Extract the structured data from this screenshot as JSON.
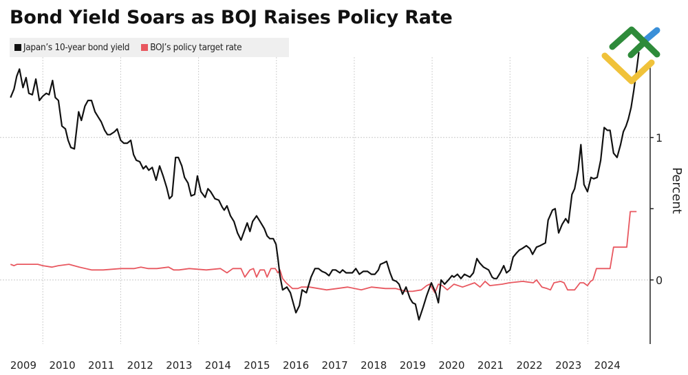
{
  "title": "Bond Yield Soars as BOJ Raises Policy Rate",
  "legend": [
    {
      "label": "Japan’s 10-year bond yield",
      "color": "#111111"
    },
    {
      "label": "BOJ’s policy target rate",
      "color": "#e8575f"
    }
  ],
  "logo": {
    "name": "brand-logo",
    "colors": {
      "green": "#2e8b3a",
      "blue": "#3a8fd8",
      "yellow": "#f0c23a"
    }
  },
  "chart_data": {
    "type": "line",
    "title": "Bond Yield Soars as BOJ Raises Policy Rate",
    "xlabel": "",
    "ylabel": "Percent",
    "xlim": [
      2008.9,
      2025.6
    ],
    "ylim": [
      -0.45,
      1.54
    ],
    "grid": true,
    "legend_position": "top-left",
    "x_ticks": [
      2009,
      2010,
      2011,
      2012,
      2013,
      2014,
      2015,
      2016,
      2017,
      2018,
      2019,
      2020,
      2021,
      2022,
      2023,
      2024
    ],
    "x_tick_labels": [
      "2009",
      "2010",
      "2011",
      "2012",
      "2013",
      "2014",
      "2015",
      "2016",
      "2017",
      "2018",
      "2019",
      "2020",
      "2021",
      "2022",
      "2023",
      "2024"
    ],
    "x_gridlines": [
      2010,
      2012,
      2014,
      2016,
      2018,
      2020,
      2022,
      2024
    ],
    "y_ticks": [
      0,
      0.5,
      1
    ],
    "y_tick_labels": [
      "0",
      "",
      "1"
    ],
    "y_gridlines": [
      0,
      1
    ],
    "series": [
      {
        "name": "Japan’s 10-year bond yield",
        "color": "#111111",
        "points": [
          [
            2009.17,
            1.28
          ],
          [
            2009.26,
            1.34
          ],
          [
            2009.33,
            1.43
          ],
          [
            2009.4,
            1.48
          ],
          [
            2009.49,
            1.35
          ],
          [
            2009.57,
            1.42
          ],
          [
            2009.64,
            1.31
          ],
          [
            2009.73,
            1.3
          ],
          [
            2009.82,
            1.41
          ],
          [
            2009.91,
            1.26
          ],
          [
            2010.0,
            1.29
          ],
          [
            2010.09,
            1.31
          ],
          [
            2010.16,
            1.3
          ],
          [
            2010.25,
            1.4
          ],
          [
            2010.32,
            1.28
          ],
          [
            2010.4,
            1.26
          ],
          [
            2010.49,
            1.08
          ],
          [
            2010.58,
            1.06
          ],
          [
            2010.65,
            0.98
          ],
          [
            2010.72,
            0.93
          ],
          [
            2010.81,
            0.92
          ],
          [
            2010.92,
            1.18
          ],
          [
            2010.99,
            1.12
          ],
          [
            2011.08,
            1.22
          ],
          [
            2011.16,
            1.26
          ],
          [
            2011.25,
            1.26
          ],
          [
            2011.34,
            1.18
          ],
          [
            2011.43,
            1.14
          ],
          [
            2011.5,
            1.11
          ],
          [
            2011.59,
            1.05
          ],
          [
            2011.66,
            1.02
          ],
          [
            2011.73,
            1.02
          ],
          [
            2011.84,
            1.04
          ],
          [
            2011.91,
            1.06
          ],
          [
            2012.0,
            0.98
          ],
          [
            2012.08,
            0.96
          ],
          [
            2012.17,
            0.96
          ],
          [
            2012.26,
            0.98
          ],
          [
            2012.33,
            0.88
          ],
          [
            2012.4,
            0.84
          ],
          [
            2012.49,
            0.83
          ],
          [
            2012.58,
            0.78
          ],
          [
            2012.65,
            0.8
          ],
          [
            2012.72,
            0.77
          ],
          [
            2012.81,
            0.79
          ],
          [
            2012.91,
            0.7
          ],
          [
            2013.0,
            0.8
          ],
          [
            2013.09,
            0.73
          ],
          [
            2013.18,
            0.65
          ],
          [
            2013.25,
            0.57
          ],
          [
            2013.32,
            0.59
          ],
          [
            2013.41,
            0.86
          ],
          [
            2013.48,
            0.86
          ],
          [
            2013.57,
            0.8
          ],
          [
            2013.64,
            0.72
          ],
          [
            2013.73,
            0.68
          ],
          [
            2013.81,
            0.59
          ],
          [
            2013.9,
            0.6
          ],
          [
            2013.97,
            0.73
          ],
          [
            2014.06,
            0.62
          ],
          [
            2014.17,
            0.58
          ],
          [
            2014.24,
            0.64
          ],
          [
            2014.31,
            0.62
          ],
          [
            2014.42,
            0.57
          ],
          [
            2014.52,
            0.56
          ],
          [
            2014.61,
            0.51
          ],
          [
            2014.66,
            0.49
          ],
          [
            2014.73,
            0.52
          ],
          [
            2014.82,
            0.45
          ],
          [
            2014.91,
            0.41
          ],
          [
            2015.0,
            0.33
          ],
          [
            2015.09,
            0.28
          ],
          [
            2015.17,
            0.34
          ],
          [
            2015.25,
            0.4
          ],
          [
            2015.32,
            0.34
          ],
          [
            2015.39,
            0.41
          ],
          [
            2015.49,
            0.45
          ],
          [
            2015.58,
            0.41
          ],
          [
            2015.69,
            0.36
          ],
          [
            2015.76,
            0.31
          ],
          [
            2015.83,
            0.29
          ],
          [
            2015.92,
            0.29
          ],
          [
            2015.99,
            0.25
          ],
          [
            2016.04,
            0.15
          ],
          [
            2016.09,
            0.03
          ],
          [
            2016.16,
            -0.07
          ],
          [
            2016.27,
            -0.05
          ],
          [
            2016.36,
            -0.09
          ],
          [
            2016.43,
            -0.16
          ],
          [
            2016.5,
            -0.23
          ],
          [
            2016.59,
            -0.18
          ],
          [
            2016.66,
            -0.07
          ],
          [
            2016.77,
            -0.09
          ],
          [
            2016.89,
            0.02
          ],
          [
            2016.99,
            0.08
          ],
          [
            2017.08,
            0.08
          ],
          [
            2017.17,
            0.06
          ],
          [
            2017.26,
            0.05
          ],
          [
            2017.35,
            0.03
          ],
          [
            2017.44,
            0.07
          ],
          [
            2017.52,
            0.07
          ],
          [
            2017.63,
            0.05
          ],
          [
            2017.7,
            0.07
          ],
          [
            2017.79,
            0.05
          ],
          [
            2017.95,
            0.05
          ],
          [
            2018.04,
            0.08
          ],
          [
            2018.13,
            0.04
          ],
          [
            2018.23,
            0.06
          ],
          [
            2018.34,
            0.06
          ],
          [
            2018.44,
            0.04
          ],
          [
            2018.53,
            0.04
          ],
          [
            2018.62,
            0.07
          ],
          [
            2018.67,
            0.11
          ],
          [
            2018.76,
            0.12
          ],
          [
            2018.83,
            0.13
          ],
          [
            2018.92,
            0.05
          ],
          [
            2018.99,
            0.0
          ],
          [
            2019.08,
            -0.01
          ],
          [
            2019.15,
            -0.03
          ],
          [
            2019.24,
            -0.1
          ],
          [
            2019.33,
            -0.05
          ],
          [
            2019.43,
            -0.13
          ],
          [
            2019.5,
            -0.16
          ],
          [
            2019.57,
            -0.17
          ],
          [
            2019.66,
            -0.28
          ],
          [
            2019.77,
            -0.19
          ],
          [
            2019.86,
            -0.11
          ],
          [
            2019.98,
            -0.02
          ],
          [
            2020.09,
            -0.09
          ],
          [
            2020.16,
            -0.16
          ],
          [
            2020.23,
            0.0
          ],
          [
            2020.32,
            -0.03
          ],
          [
            2020.42,
            0.0
          ],
          [
            2020.51,
            0.03
          ],
          [
            2020.56,
            0.02
          ],
          [
            2020.65,
            0.04
          ],
          [
            2020.74,
            0.01
          ],
          [
            2020.83,
            0.04
          ],
          [
            2020.97,
            0.02
          ],
          [
            2021.06,
            0.05
          ],
          [
            2021.15,
            0.15
          ],
          [
            2021.22,
            0.12
          ],
          [
            2021.32,
            0.09
          ],
          [
            2021.45,
            0.07
          ],
          [
            2021.54,
            0.02
          ],
          [
            2021.59,
            0.01
          ],
          [
            2021.66,
            0.01
          ],
          [
            2021.75,
            0.05
          ],
          [
            2021.84,
            0.1
          ],
          [
            2021.91,
            0.05
          ],
          [
            2022.0,
            0.07
          ],
          [
            2022.08,
            0.16
          ],
          [
            2022.17,
            0.19
          ],
          [
            2022.24,
            0.21
          ],
          [
            2022.31,
            0.22
          ],
          [
            2022.42,
            0.24
          ],
          [
            2022.51,
            0.22
          ],
          [
            2022.58,
            0.18
          ],
          [
            2022.68,
            0.23
          ],
          [
            2022.77,
            0.24
          ],
          [
            2022.91,
            0.26
          ],
          [
            2022.98,
            0.42
          ],
          [
            2023.09,
            0.49
          ],
          [
            2023.16,
            0.5
          ],
          [
            2023.25,
            0.33
          ],
          [
            2023.34,
            0.39
          ],
          [
            2023.43,
            0.43
          ],
          [
            2023.5,
            0.4
          ],
          [
            2023.59,
            0.6
          ],
          [
            2023.66,
            0.64
          ],
          [
            2023.75,
            0.77
          ],
          [
            2023.82,
            0.95
          ],
          [
            2023.9,
            0.67
          ],
          [
            2023.99,
            0.62
          ],
          [
            2024.08,
            0.72
          ],
          [
            2024.15,
            0.71
          ],
          [
            2024.24,
            0.72
          ],
          [
            2024.33,
            0.84
          ],
          [
            2024.42,
            1.07
          ],
          [
            2024.5,
            1.05
          ],
          [
            2024.57,
            1.05
          ],
          [
            2024.66,
            0.89
          ],
          [
            2024.75,
            0.86
          ],
          [
            2024.84,
            0.95
          ],
          [
            2024.91,
            1.04
          ],
          [
            2024.98,
            1.08
          ],
          [
            2025.04,
            1.13
          ],
          [
            2025.11,
            1.21
          ],
          [
            2025.18,
            1.33
          ],
          [
            2025.24,
            1.45
          ],
          [
            2025.31,
            1.6
          ]
        ]
      },
      {
        "name": "BOJ’s policy target rate",
        "color": "#e8575f",
        "points": [
          [
            2009.17,
            0.11
          ],
          [
            2009.26,
            0.1
          ],
          [
            2009.34,
            0.11
          ],
          [
            2009.52,
            0.11
          ],
          [
            2009.7,
            0.11
          ],
          [
            2009.87,
            0.11
          ],
          [
            2010.0,
            0.1
          ],
          [
            2010.23,
            0.09
          ],
          [
            2010.4,
            0.1
          ],
          [
            2010.67,
            0.11
          ],
          [
            2010.94,
            0.09
          ],
          [
            2011.25,
            0.07
          ],
          [
            2011.55,
            0.07
          ],
          [
            2012.0,
            0.08
          ],
          [
            2012.35,
            0.08
          ],
          [
            2012.52,
            0.09
          ],
          [
            2012.7,
            0.08
          ],
          [
            2012.93,
            0.08
          ],
          [
            2013.23,
            0.09
          ],
          [
            2013.36,
            0.07
          ],
          [
            2013.5,
            0.07
          ],
          [
            2013.76,
            0.08
          ],
          [
            2014.2,
            0.07
          ],
          [
            2014.56,
            0.08
          ],
          [
            2014.73,
            0.05
          ],
          [
            2014.88,
            0.08
          ],
          [
            2015.09,
            0.08
          ],
          [
            2015.19,
            0.02
          ],
          [
            2015.32,
            0.07
          ],
          [
            2015.41,
            0.08
          ],
          [
            2015.49,
            0.02
          ],
          [
            2015.58,
            0.07
          ],
          [
            2015.69,
            0.07
          ],
          [
            2015.76,
            0.02
          ],
          [
            2015.86,
            0.08
          ],
          [
            2015.97,
            0.08
          ],
          [
            2016.04,
            0.05
          ],
          [
            2016.09,
            0.07
          ],
          [
            2016.16,
            0.01
          ],
          [
            2016.25,
            -0.02
          ],
          [
            2016.41,
            -0.06
          ],
          [
            2016.55,
            -0.06
          ],
          [
            2016.64,
            -0.05
          ],
          [
            2016.85,
            -0.05
          ],
          [
            2017.29,
            -0.07
          ],
          [
            2017.56,
            -0.06
          ],
          [
            2017.83,
            -0.05
          ],
          [
            2018.18,
            -0.07
          ],
          [
            2018.44,
            -0.05
          ],
          [
            2018.8,
            -0.06
          ],
          [
            2019.06,
            -0.06
          ],
          [
            2019.33,
            -0.08
          ],
          [
            2019.5,
            -0.08
          ],
          [
            2019.72,
            -0.07
          ],
          [
            2019.86,
            -0.04
          ],
          [
            2019.94,
            -0.03
          ],
          [
            2020.07,
            -0.09
          ],
          [
            2020.16,
            -0.03
          ],
          [
            2020.26,
            -0.04
          ],
          [
            2020.39,
            -0.07
          ],
          [
            2020.56,
            -0.03
          ],
          [
            2020.78,
            -0.05
          ],
          [
            2021.09,
            -0.02
          ],
          [
            2021.23,
            -0.05
          ],
          [
            2021.36,
            -0.01
          ],
          [
            2021.48,
            -0.04
          ],
          [
            2021.8,
            -0.03
          ],
          [
            2021.98,
            -0.02
          ],
          [
            2022.33,
            -0.01
          ],
          [
            2022.6,
            -0.02
          ],
          [
            2022.68,
            0.0
          ],
          [
            2022.82,
            -0.05
          ],
          [
            2022.95,
            -0.06
          ],
          [
            2023.04,
            -0.07
          ],
          [
            2023.13,
            -0.02
          ],
          [
            2023.3,
            -0.01
          ],
          [
            2023.39,
            -0.02
          ],
          [
            2023.48,
            -0.07
          ],
          [
            2023.66,
            -0.07
          ],
          [
            2023.8,
            -0.02
          ],
          [
            2023.89,
            -0.02
          ],
          [
            2023.99,
            -0.04
          ],
          [
            2024.07,
            -0.01
          ],
          [
            2024.13,
            0.0
          ],
          [
            2024.22,
            0.08
          ],
          [
            2024.57,
            0.08
          ],
          [
            2024.66,
            0.23
          ],
          [
            2025.0,
            0.23
          ],
          [
            2025.09,
            0.48
          ],
          [
            2025.25,
            0.48
          ]
        ]
      }
    ]
  }
}
